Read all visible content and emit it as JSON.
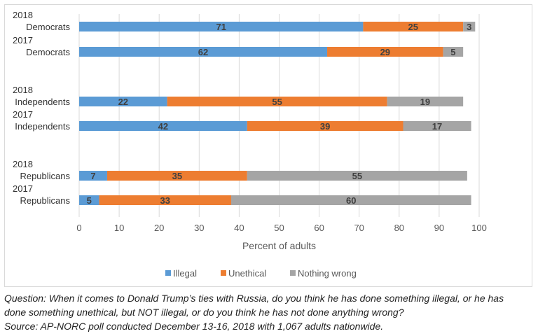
{
  "chart_data": {
    "type": "bar",
    "orientation": "horizontal",
    "stacked": true,
    "categories": [
      {
        "year": "2018",
        "group": "Democrats"
      },
      {
        "year": "2017",
        "group": "Democrats"
      },
      {
        "year": "2018",
        "group": "Independents"
      },
      {
        "year": "2017",
        "group": "Independents"
      },
      {
        "year": "2018",
        "group": "Republicans"
      },
      {
        "year": "2017",
        "group": "Republicans"
      }
    ],
    "series": [
      {
        "name": "Illegal",
        "color": "#5b9bd5",
        "values": [
          71,
          62,
          22,
          42,
          7,
          5
        ]
      },
      {
        "name": "Unethical",
        "color": "#ed7d31",
        "values": [
          25,
          29,
          55,
          39,
          35,
          33
        ]
      },
      {
        "name": "Nothing wrong",
        "color": "#a5a5a5",
        "values": [
          3,
          5,
          19,
          17,
          55,
          60
        ]
      }
    ],
    "xlabel": "Percent of adults",
    "xlim": [
      0,
      100
    ],
    "xticks": [
      0,
      10,
      20,
      30,
      40,
      50,
      60,
      70,
      80,
      90,
      100
    ],
    "data_labels": true,
    "grid": true,
    "legend_position": "bottom"
  },
  "notes": {
    "question_line1": "Question: When it comes to Donald Trump’s ties with Russia, do you think he has done something illegal, or he has",
    "question_line2": "done something unethical, but NOT illegal, or do you think he has not done anything wrong?",
    "source": "Source: AP-NORC poll conducted December 13-16, 2018 with 1,067 adults nationwide."
  }
}
